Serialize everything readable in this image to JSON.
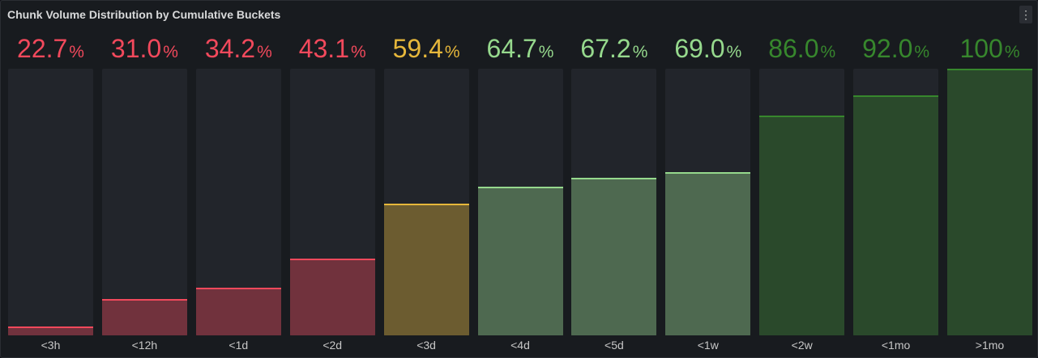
{
  "panel": {
    "title": "Chunk Volume Distribution by Cumulative Buckets",
    "menu_icon": "kebab-vertical-icon"
  },
  "colors": {
    "red": "#f2495c",
    "yellow": "#e6b73b",
    "light_green": "#96d98d",
    "green": "#37872d",
    "track": "#22252b"
  },
  "chart_data": {
    "type": "bar",
    "title": "Chunk Volume Distribution by Cumulative Buckets",
    "unit": "%",
    "ylim": [
      20,
      100
    ],
    "categories": [
      "<3h",
      "<12h",
      "<1d",
      "<2d",
      "<3d",
      "<4d",
      "<5d",
      "<1w",
      "<2w",
      "<1mo",
      ">1mo"
    ],
    "values": [
      22.7,
      31.0,
      34.2,
      43.1,
      59.4,
      64.7,
      67.2,
      69.0,
      86.0,
      92.0,
      100
    ],
    "value_labels": [
      "22.7",
      "31.0",
      "34.2",
      "43.1",
      "59.4",
      "64.7",
      "67.2",
      "69.0",
      "86.0",
      "92.0",
      "100"
    ],
    "thresholds": [
      {
        "from": 0,
        "color": "red"
      },
      {
        "from": 50,
        "color": "yellow"
      },
      {
        "from": 60,
        "color": "light_green"
      },
      {
        "from": 80,
        "color": "green"
      }
    ]
  }
}
